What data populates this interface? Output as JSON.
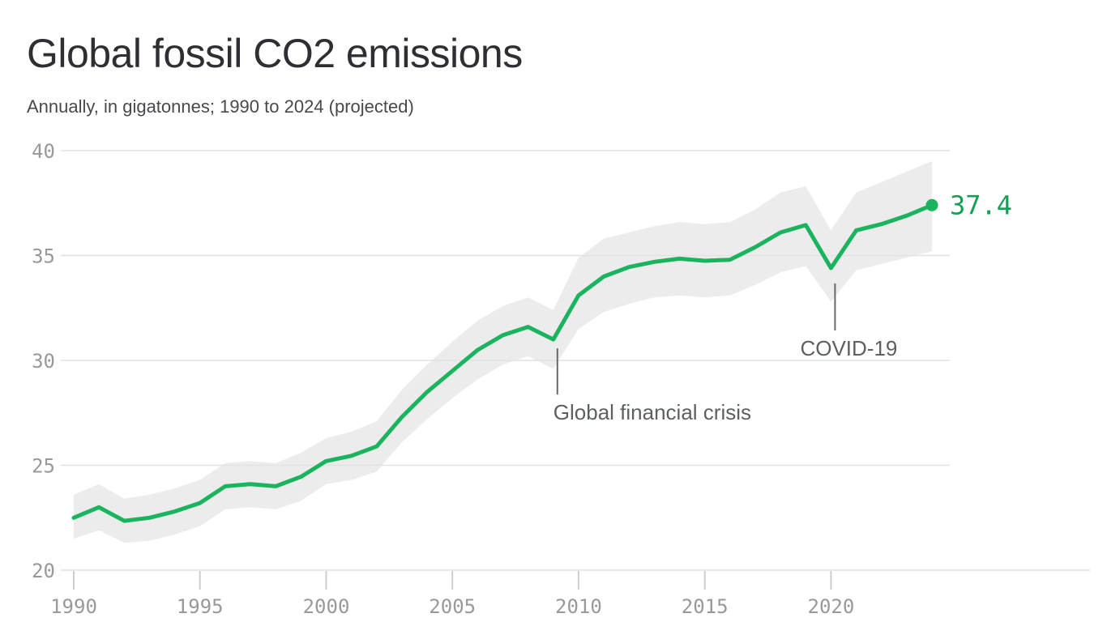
{
  "header": {
    "title": "Global fossil CO2 emissions",
    "subtitle": "Annually, in gigatonnes; 1990 to 2024 (projected)"
  },
  "chart_data": {
    "type": "line",
    "title": "Global fossil CO2 emissions",
    "subtitle": "Annually, in gigatonnes; 1990 to 2024 (projected)",
    "unit": "gigatonnes CO2 per year",
    "x": [
      1990,
      1991,
      1992,
      1993,
      1994,
      1995,
      1996,
      1997,
      1998,
      1999,
      2000,
      2001,
      2002,
      2003,
      2004,
      2005,
      2006,
      2007,
      2008,
      2009,
      2010,
      2011,
      2012,
      2013,
      2014,
      2015,
      2016,
      2017,
      2018,
      2019,
      2020,
      2021,
      2022,
      2023,
      2024
    ],
    "series": [
      {
        "name": "Global fossil CO2 emissions",
        "values": [
          22.5,
          23.0,
          22.35,
          22.5,
          22.8,
          23.2,
          24.0,
          24.1,
          24.0,
          24.45,
          25.2,
          25.45,
          25.9,
          27.3,
          28.5,
          29.5,
          30.5,
          31.2,
          31.6,
          31.0,
          33.1,
          34.0,
          34.45,
          34.7,
          34.85,
          34.75,
          34.8,
          35.4,
          36.1,
          36.45,
          34.4,
          36.2,
          36.5,
          36.9,
          37.4
        ]
      }
    ],
    "band": {
      "name": "uncertainty-range",
      "upper": [
        23.6,
        24.1,
        23.4,
        23.6,
        23.9,
        24.3,
        25.1,
        25.2,
        25.1,
        25.6,
        26.3,
        26.6,
        27.1,
        28.6,
        29.8,
        30.9,
        31.9,
        32.6,
        33.0,
        32.4,
        34.9,
        35.8,
        36.1,
        36.4,
        36.6,
        36.5,
        36.6,
        37.2,
        38.0,
        38.3,
        36.2,
        38.0,
        38.5,
        39.0,
        39.5
      ],
      "lower": [
        21.5,
        21.9,
        21.3,
        21.4,
        21.7,
        22.1,
        22.9,
        23.0,
        22.9,
        23.3,
        24.1,
        24.3,
        24.7,
        26.1,
        27.2,
        28.2,
        29.1,
        29.8,
        30.2,
        29.6,
        31.5,
        32.3,
        32.7,
        33.0,
        33.1,
        33.0,
        33.1,
        33.6,
        34.2,
        34.5,
        32.8,
        34.3,
        34.6,
        34.9,
        35.2
      ]
    },
    "end_label": "37.4",
    "annotations": [
      {
        "text": "Global financial crisis",
        "year": 2009
      },
      {
        "text": "COVID-19",
        "year": 2020
      }
    ],
    "x_ticks": [
      1990,
      1995,
      2000,
      2005,
      2010,
      2015,
      2020
    ],
    "y_ticks": [
      40,
      35,
      30,
      25,
      20
    ],
    "xlim": [
      1990,
      2024
    ],
    "ylim": [
      20,
      40
    ],
    "grid": true,
    "legend": "none",
    "colors": {
      "line": "#1ab35e",
      "band": "#ececec",
      "grid": "#e2e2e2",
      "tick": "#cdcdcd",
      "axis_text": "#97999b",
      "annotation_line": "#66696c",
      "annotation_text": "#5d6063",
      "accent_label": "#12a152",
      "title": "#2e2f33",
      "subtitle": "#47494d"
    }
  }
}
